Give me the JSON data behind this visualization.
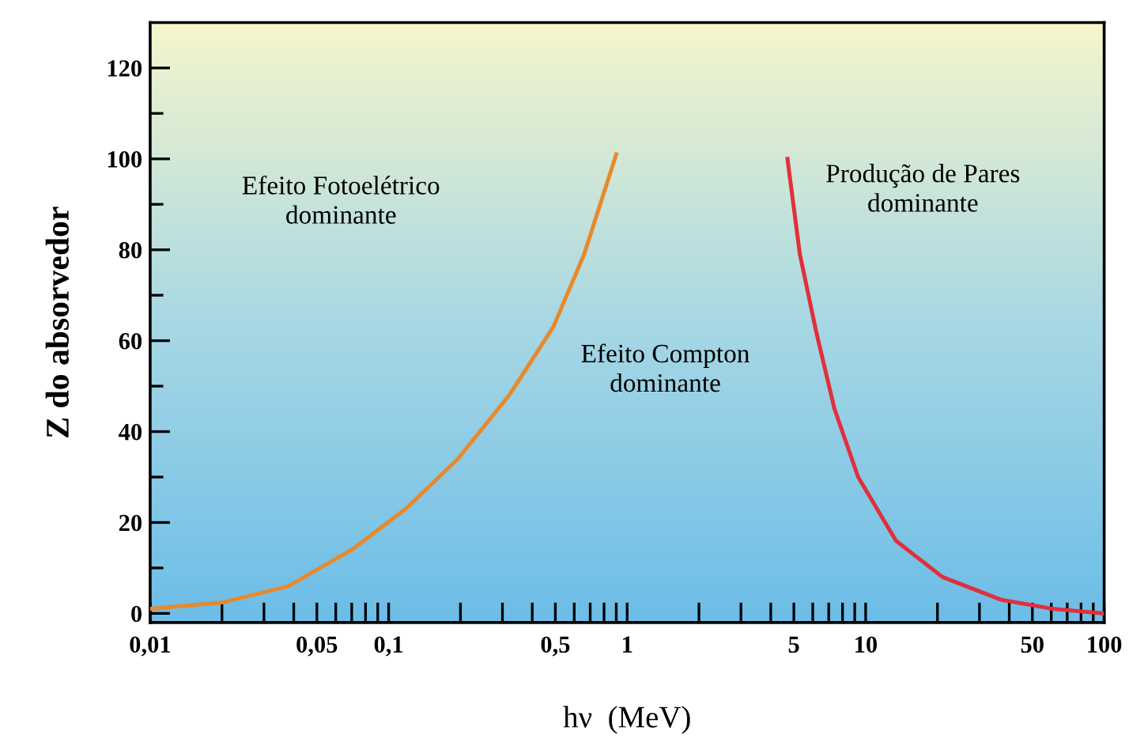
{
  "chart_data": {
    "type": "line",
    "xlabel": "hν  (MeV)",
    "ylabel": "Z do absorvedor",
    "log": "x",
    "series": [
      {
        "color": "#e8892c",
        "x": [
          0.01,
          0.02,
          0.038,
          0.07,
          0.118,
          0.195,
          0.32,
          0.49,
          0.66,
          0.9
        ],
        "values": [
          1,
          2.4,
          6,
          14,
          23,
          34,
          48,
          63,
          79,
          101
        ]
      },
      {
        "color": "#e0303c",
        "x": [
          4.7,
          5.3,
          6.2,
          7.4,
          9.3,
          13.4,
          21,
          37,
          61,
          100
        ],
        "values": [
          100,
          79,
          62,
          45,
          30,
          16,
          8,
          3,
          1,
          0
        ]
      }
    ],
    "annotations": [
      "Efeito Fotoelétrico\ndominante",
      "Efeito Compton\ndominante",
      "Produção de Pares\ndominante"
    ],
    "xlim": [
      0.01,
      100
    ],
    "ylim": [
      -2,
      130
    ],
    "xticks": [
      {
        "value": 0.01,
        "label": "0,01"
      },
      {
        "value": 0.02,
        "label": null
      },
      {
        "value": 0.03,
        "label": null
      },
      {
        "value": 0.04,
        "label": null
      },
      {
        "value": 0.05,
        "label": "0,05"
      },
      {
        "value": 0.06,
        "label": null
      },
      {
        "value": 0.07,
        "label": null
      },
      {
        "value": 0.08,
        "label": null
      },
      {
        "value": 0.09,
        "label": null
      },
      {
        "value": 0.1,
        "label": "0,1"
      },
      {
        "value": 0.2,
        "label": null
      },
      {
        "value": 0.3,
        "label": null
      },
      {
        "value": 0.4,
        "label": null
      },
      {
        "value": 0.5,
        "label": "0,5"
      },
      {
        "value": 0.6,
        "label": null
      },
      {
        "value": 0.7,
        "label": null
      },
      {
        "value": 0.8,
        "label": null
      },
      {
        "value": 0.9,
        "label": null
      },
      1,
      {
        "value": 2,
        "label": null
      },
      {
        "value": 3,
        "label": null
      },
      {
        "value": 4,
        "label": null
      },
      5,
      {
        "value": 6,
        "label": null
      },
      {
        "value": 7,
        "label": null
      },
      {
        "value": 8,
        "label": null
      },
      {
        "value": 9,
        "label": null
      },
      10,
      {
        "value": 20,
        "label": null
      },
      {
        "value": 30,
        "label": null
      },
      {
        "value": 40,
        "label": null
      },
      50,
      {
        "value": 60,
        "label": null
      },
      {
        "value": 70,
        "label": null
      },
      {
        "value": 80,
        "label": null
      },
      {
        "value": 90,
        "label": null
      },
      100
    ],
    "yticks": [
      0,
      {
        "value": 10,
        "label": null
      },
      20,
      {
        "value": 30,
        "label": null
      },
      40,
      {
        "value": 50,
        "label": null
      },
      60,
      {
        "value": 70,
        "label": null
      },
      80,
      {
        "value": 90,
        "label": null
      },
      100,
      {
        "value": 110,
        "label": null
      },
      120
    ]
  }
}
